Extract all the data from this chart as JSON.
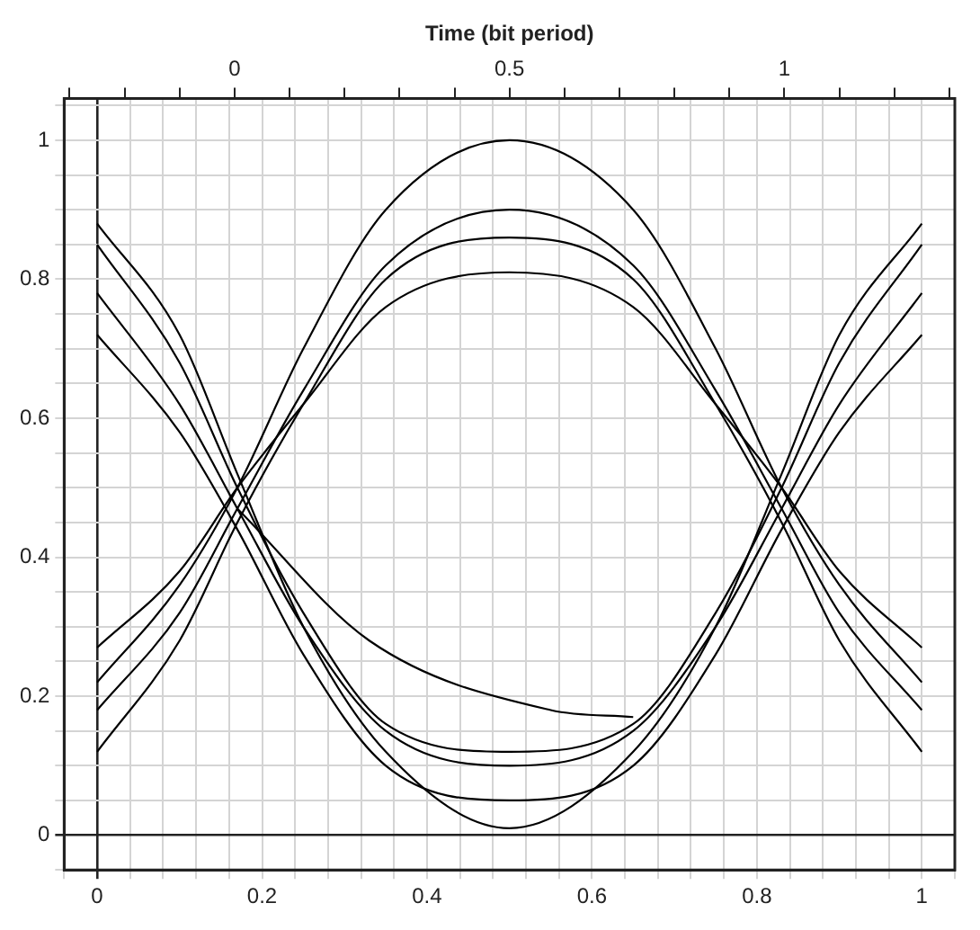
{
  "chart_data": {
    "type": "line",
    "x2label": "Time (bit period)",
    "x": [
      0,
      0.1,
      0.17,
      0.25,
      0.35,
      0.5,
      0.65,
      0.75,
      0.83,
      0.9,
      1
    ],
    "series": [
      {
        "color": "#000000",
        "values": [
          0.78,
          0.62,
          0.47,
          0.3,
          0.15,
          0.1,
          0.15,
          0.3,
          0.47,
          0.62,
          0.78
        ]
      },
      {
        "color": "#000000",
        "values": [
          0.85,
          0.68,
          0.5,
          0.32,
          0.16,
          0.12,
          0.16,
          0.32,
          0.5,
          0.68,
          0.85
        ]
      },
      {
        "color": "#000000",
        "values": [
          0.72,
          0.58,
          0.44,
          0.26,
          0.1,
          0.05,
          0.1,
          0.26,
          0.44,
          0.58,
          0.72
        ]
      },
      {
        "color": "#000000",
        "values": [
          0.88,
          0.72,
          0.52,
          0.3,
          0.12,
          0.01,
          0.12,
          0.3,
          0.52,
          0.72,
          0.88
        ]
      },
      {
        "color": "#000000",
        "values": [
          0.18,
          0.32,
          0.47,
          0.64,
          0.82,
          0.9,
          0.82,
          0.64,
          0.47,
          0.32,
          0.18
        ]
      },
      {
        "color": "#000000",
        "values": [
          0.12,
          0.28,
          0.45,
          0.62,
          0.8,
          0.86,
          0.8,
          0.62,
          0.45,
          0.28,
          0.12
        ]
      },
      {
        "color": "#000000",
        "values": [
          0.22,
          0.36,
          0.5,
          0.7,
          0.9,
          1.0,
          0.9,
          0.7,
          0.5,
          0.36,
          0.22
        ]
      },
      {
        "color": "#000000",
        "values": [
          0.27,
          0.38,
          0.5,
          0.62,
          0.76,
          0.81,
          0.76,
          0.62,
          0.5,
          0.38,
          0.27
        ]
      },
      {
        "color": "#000000",
        "x": [
          0.17,
          0.33,
          0.55,
          0.65
        ],
        "values": [
          0.47,
          0.28,
          0.18,
          0.17
        ]
      }
    ],
    "xlim": [
      -0.04,
      1.04
    ],
    "xticks": [
      {
        "value": -0.04,
        "label": null
      },
      0,
      {
        "value": 0.04,
        "label": null
      },
      {
        "value": 0.08,
        "label": null
      },
      {
        "value": 0.12,
        "label": null
      },
      {
        "value": 0.16,
        "label": null
      },
      0.2,
      {
        "value": 0.24,
        "label": null
      },
      {
        "value": 0.28,
        "label": null
      },
      {
        "value": 0.32,
        "label": null
      },
      {
        "value": 0.36,
        "label": null
      },
      0.4,
      {
        "value": 0.44,
        "label": null
      },
      {
        "value": 0.48,
        "label": null
      },
      {
        "value": 0.52,
        "label": null
      },
      {
        "value": 0.56,
        "label": null
      },
      0.6,
      {
        "value": 0.64,
        "label": null
      },
      {
        "value": 0.68,
        "label": null
      },
      {
        "value": 0.72,
        "label": null
      },
      {
        "value": 0.76,
        "label": null
      },
      0.8,
      {
        "value": 0.84,
        "label": null
      },
      {
        "value": 0.88,
        "label": null
      },
      {
        "value": 0.92,
        "label": null
      },
      {
        "value": 0.96,
        "label": null
      },
      1,
      {
        "value": 1.04,
        "label": null
      }
    ],
    "x2lim": [
      -0.31,
      1.31
    ],
    "x2ticks": [
      {
        "value": -0.3,
        "label": null
      },
      {
        "value": -0.2,
        "label": null
      },
      {
        "value": -0.1,
        "label": null
      },
      0,
      {
        "value": 0.1,
        "label": null
      },
      {
        "value": 0.2,
        "label": null
      },
      {
        "value": 0.3,
        "label": null
      },
      {
        "value": 0.4,
        "label": null
      },
      0.5,
      {
        "value": 0.6,
        "label": null
      },
      {
        "value": 0.7,
        "label": null
      },
      {
        "value": 0.8,
        "label": null
      },
      {
        "value": 0.9,
        "label": null
      },
      1,
      {
        "value": 1.1,
        "label": null
      },
      {
        "value": 1.2,
        "label": null
      },
      {
        "value": 1.3,
        "label": null
      }
    ],
    "ylim": [
      -0.05,
      1.06
    ],
    "yticks": [
      {
        "value": -0.05,
        "label": null
      },
      0,
      {
        "value": 0.05,
        "label": null
      },
      {
        "value": 0.1,
        "label": null
      },
      {
        "value": 0.15,
        "label": null
      },
      0.2,
      {
        "value": 0.25,
        "label": null
      },
      {
        "value": 0.3,
        "label": null
      },
      {
        "value": 0.35,
        "label": null
      },
      0.4,
      {
        "value": 0.45,
        "label": null
      },
      {
        "value": 0.5,
        "label": null
      },
      {
        "value": 0.55,
        "label": null
      },
      0.6,
      {
        "value": 0.65,
        "label": null
      },
      {
        "value": 0.7,
        "label": null
      },
      {
        "value": 0.75,
        "label": null
      },
      0.8,
      {
        "value": 0.85,
        "label": null
      },
      {
        "value": 0.9,
        "label": null
      },
      {
        "value": 0.95,
        "label": null
      },
      1,
      {
        "value": 1.05,
        "label": null
      }
    ],
    "grid": true,
    "legend": false,
    "marker": "none",
    "line_style": "solid"
  }
}
